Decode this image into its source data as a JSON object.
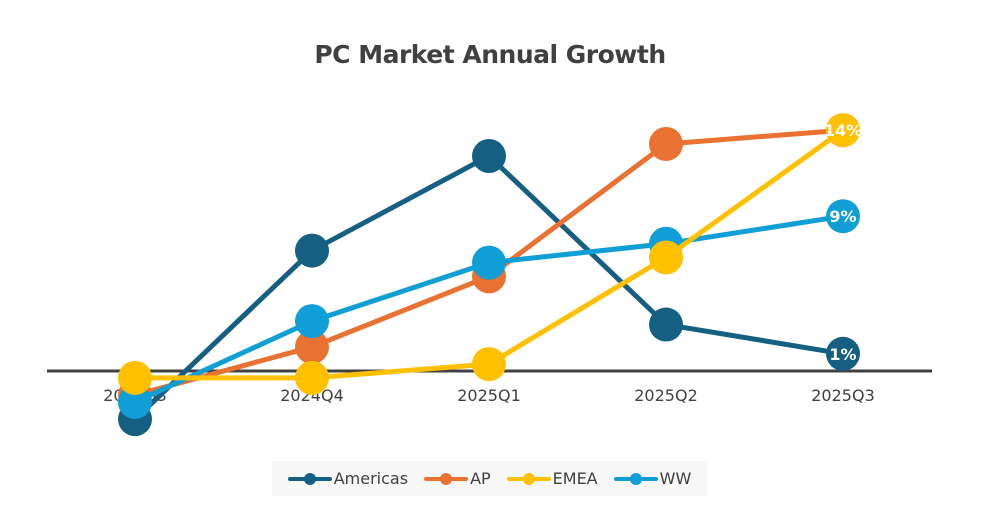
{
  "chart_data": {
    "type": "line",
    "title": "PC Market Annual Growth",
    "xlabel": "",
    "ylabel": "",
    "categories": [
      "2024Q3",
      "2024Q4",
      "2025Q1",
      "2025Q2",
      "2025Q3"
    ],
    "unit": "%",
    "ylim": [
      -3,
      15
    ],
    "grid": false,
    "legend_position": "bottom",
    "series": [
      {
        "name": "Americas",
        "color": "#156082",
        "values": [
          -2.8,
          7.0,
          12.5,
          2.7,
          1
        ],
        "end_label": "1%"
      },
      {
        "name": "AP",
        "color": "#E97132",
        "values": [
          -1.4,
          1.4,
          5.5,
          13.2,
          14
        ],
        "end_label": ""
      },
      {
        "name": "EMEA",
        "color": "#FFC000",
        "values": [
          -0.4,
          -0.4,
          0.4,
          6.6,
          14
        ],
        "end_label": "14%"
      },
      {
        "name": "WW",
        "color": "#0F9ED5",
        "values": [
          -1.8,
          2.9,
          6.3,
          7.4,
          9
        ],
        "end_label": "9%"
      }
    ]
  }
}
